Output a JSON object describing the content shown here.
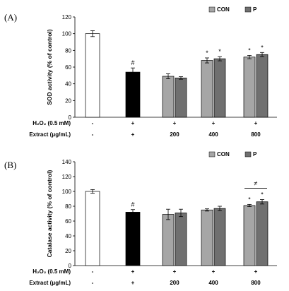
{
  "colors": {
    "control": "#ffffff",
    "h2o2": "#000000",
    "con": "#a6a6a6",
    "p": "#707070",
    "axis": "#000000"
  },
  "legend": [
    {
      "label": "CON",
      "color": "#a6a6a6"
    },
    {
      "label": "P",
      "color": "#707070"
    }
  ],
  "chart_data": [
    {
      "type": "bar",
      "panel_label": "(A)",
      "ylabel": "SOD activity (% of control)",
      "ylim": [
        0,
        120
      ],
      "yticks": [
        0,
        20,
        40,
        60,
        80,
        100,
        120
      ],
      "row_labels": [
        "H₂O₂ (0.5 mM)",
        "Extract (μg/mL)"
      ],
      "conditions": [
        {
          "h2o2": "-",
          "extract": "-"
        },
        {
          "h2o2": "+",
          "extract": "+"
        },
        {
          "h2o2": "+",
          "extract": "200"
        },
        {
          "h2o2": "+",
          "extract": "400"
        },
        {
          "h2o2": "+",
          "extract": "800"
        }
      ],
      "bars": [
        {
          "group": 0,
          "kind": "control",
          "value": 100,
          "error": 3.5,
          "annotation": ""
        },
        {
          "group": 1,
          "kind": "h2o2",
          "value": 54,
          "error": 5,
          "annotation": "#"
        },
        {
          "group": 2,
          "kind": "con",
          "value": 49,
          "error": 3,
          "annotation": ""
        },
        {
          "group": 2,
          "kind": "p",
          "value": 47,
          "error": 1.5,
          "annotation": ""
        },
        {
          "group": 3,
          "kind": "con",
          "value": 68,
          "error": 3,
          "annotation": "*"
        },
        {
          "group": 3,
          "kind": "p",
          "value": 70,
          "error": 2.5,
          "annotation": "*"
        },
        {
          "group": 4,
          "kind": "con",
          "value": 72,
          "error": 2,
          "annotation": "*"
        },
        {
          "group": 4,
          "kind": "p",
          "value": 75,
          "error": 2.5,
          "annotation": "*"
        }
      ],
      "group_annotation": null
    },
    {
      "type": "bar",
      "panel_label": "(B)",
      "ylabel": "Catalase activity (% of control)",
      "ylim": [
        0,
        140
      ],
      "yticks": [
        0,
        20,
        40,
        60,
        80,
        100,
        120,
        140
      ],
      "row_labels": [
        "H₂O₂ (0.5 mM)",
        "Extract (μg/mL)"
      ],
      "conditions": [
        {
          "h2o2": "-",
          "extract": "-"
        },
        {
          "h2o2": "+",
          "extract": "+"
        },
        {
          "h2o2": "+",
          "extract": "200"
        },
        {
          "h2o2": "+",
          "extract": "400"
        },
        {
          "h2o2": "+",
          "extract": "800"
        }
      ],
      "bars": [
        {
          "group": 0,
          "kind": "control",
          "value": 100,
          "error": 2.5,
          "annotation": ""
        },
        {
          "group": 1,
          "kind": "h2o2",
          "value": 72,
          "error": 3.5,
          "annotation": "#"
        },
        {
          "group": 2,
          "kind": "con",
          "value": 69,
          "error": 7,
          "annotation": ""
        },
        {
          "group": 2,
          "kind": "p",
          "value": 71,
          "error": 5,
          "annotation": ""
        },
        {
          "group": 3,
          "kind": "con",
          "value": 75,
          "error": 1.5,
          "annotation": ""
        },
        {
          "group": 3,
          "kind": "p",
          "value": 77,
          "error": 3,
          "annotation": ""
        },
        {
          "group": 4,
          "kind": "con",
          "value": 81,
          "error": 1.5,
          "annotation": "*"
        },
        {
          "group": 4,
          "kind": "p",
          "value": 86,
          "error": 3,
          "annotation": "*"
        }
      ],
      "group_annotation": {
        "group": 4,
        "symbol": "≠"
      }
    }
  ]
}
